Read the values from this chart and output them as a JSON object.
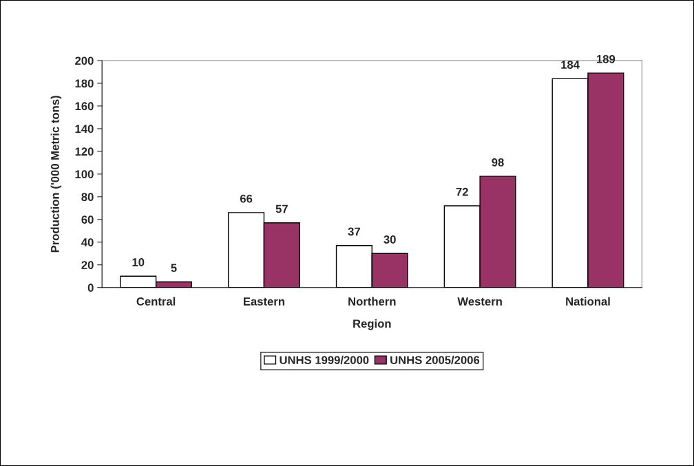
{
  "chart_data": {
    "type": "bar",
    "xlabel": "Region",
    "ylabel": "Production ('000 Metric tons)",
    "categories": [
      "Central",
      "Eastern",
      "Northern",
      "Western",
      "National"
    ],
    "series": [
      {
        "name": "UNHS 1999/2000",
        "color": "#ffffff",
        "values": [
          10,
          66,
          37,
          72,
          184
        ]
      },
      {
        "name": "UNHS 2005/2006",
        "color": "#993366",
        "values": [
          5,
          57,
          30,
          98,
          189
        ]
      }
    ],
    "ylim": [
      0,
      200
    ],
    "yticks": [
      0,
      20,
      40,
      60,
      80,
      100,
      120,
      140,
      160,
      180,
      200
    ],
    "data_labels": true,
    "grid": false,
    "legend": "bottom"
  }
}
